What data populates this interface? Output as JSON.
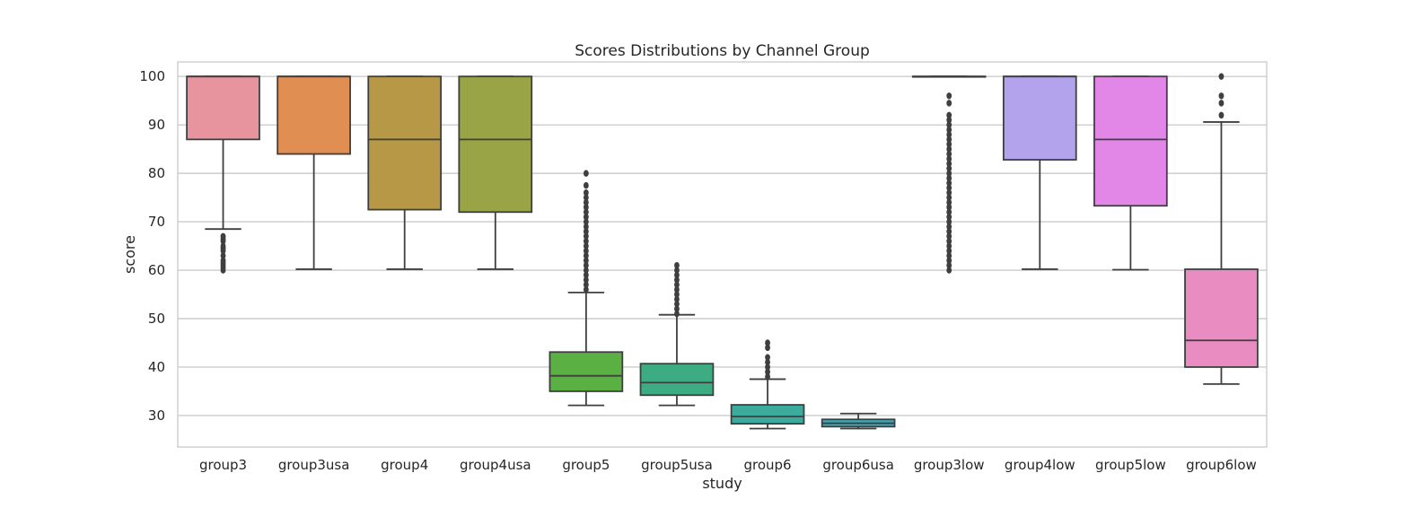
{
  "chart_data": {
    "type": "box",
    "title": "Scores Distributions by Channel Group",
    "xlabel": "study",
    "ylabel": "score",
    "ylim": [
      23.5,
      103
    ],
    "yticks": [
      30,
      40,
      50,
      60,
      70,
      80,
      90,
      100
    ],
    "grid": "horizontal",
    "categories": [
      "group3",
      "group3usa",
      "group4",
      "group4usa",
      "group5",
      "group5usa",
      "group6",
      "group6usa",
      "group3low",
      "group4low",
      "group5low",
      "group6low"
    ],
    "colors": [
      "#e8949f",
      "#e18e52",
      "#b69846",
      "#98a446",
      "#5ab043",
      "#3eac82",
      "#3aab9c",
      "#3caab8",
      "#70a9e4",
      "#b3a3ec",
      "#e287e8",
      "#e88cc2"
    ],
    "boxes": [
      {
        "q1": 87,
        "median": 100,
        "q3": 100,
        "whislo": 68.5,
        "whishi": 100,
        "fliers": [
          60,
          60.5,
          61,
          61.5,
          62,
          63,
          64,
          64.5,
          65,
          66,
          66.5,
          67
        ]
      },
      {
        "q1": 84,
        "median": 100,
        "q3": 100,
        "whislo": 60.2,
        "whishi": 100,
        "fliers": []
      },
      {
        "q1": 72.5,
        "median": 87,
        "q3": 100,
        "whislo": 60.2,
        "whishi": 100,
        "fliers": []
      },
      {
        "q1": 72,
        "median": 87,
        "q3": 100,
        "whislo": 60.2,
        "whishi": 100,
        "fliers": []
      },
      {
        "q1": 35,
        "median": 38.2,
        "q3": 43.1,
        "whislo": 32.1,
        "whishi": 55.4,
        "fliers": [
          56,
          57,
          58,
          59,
          60,
          61,
          62,
          63,
          64,
          65,
          66,
          67,
          68,
          69,
          70,
          71,
          72,
          73,
          74,
          75,
          76,
          77.5,
          80
        ]
      },
      {
        "q1": 34.2,
        "median": 36.8,
        "q3": 40.7,
        "whislo": 32.1,
        "whishi": 50.8,
        "fliers": [
          51,
          52,
          53,
          54,
          55,
          56,
          57,
          58,
          59,
          60,
          61
        ]
      },
      {
        "q1": 28.3,
        "median": 29.8,
        "q3": 32.2,
        "whislo": 27.3,
        "whishi": 37.5,
        "fliers": [
          38,
          39,
          40,
          41,
          42,
          44,
          45
        ]
      },
      {
        "q1": 27.7,
        "median": 28.4,
        "q3": 29.2,
        "whislo": 27.3,
        "whishi": 30.4,
        "fliers": []
      },
      {
        "q1": 100,
        "median": 100,
        "q3": 100,
        "whislo": 100,
        "whishi": 100,
        "fliers": [
          60,
          61,
          62,
          63,
          64,
          65,
          66,
          67,
          68,
          69,
          70,
          71,
          72,
          73,
          74,
          75,
          76,
          77,
          78,
          79,
          80,
          81,
          82,
          83,
          84,
          85,
          86,
          87,
          88,
          89,
          90,
          91,
          92,
          94.5,
          96
        ]
      },
      {
        "q1": 82.8,
        "median": 100,
        "q3": 100,
        "whislo": 60.2,
        "whishi": 100,
        "fliers": []
      },
      {
        "q1": 73.3,
        "median": 87,
        "q3": 100,
        "whislo": 60.1,
        "whishi": 100,
        "fliers": []
      },
      {
        "q1": 40,
        "median": 45.5,
        "q3": 60.2,
        "whislo": 36.5,
        "whishi": 90.6,
        "fliers": [
          92,
          94.5,
          96,
          100
        ]
      }
    ]
  }
}
